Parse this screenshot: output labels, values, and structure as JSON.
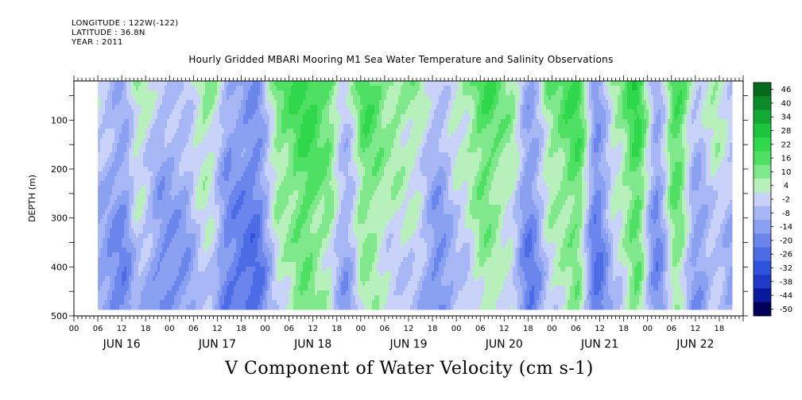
{
  "header": {
    "longitude": "LONGITUDE : 122W(-122)",
    "latitude": "LATITUDE : 36.8N",
    "year": "YEAR : 2011"
  },
  "chart_data": {
    "type": "heatmap",
    "title": "Hourly Gridded MBARI Mooring M1 Sea Water Temperature and Salinity Observations",
    "xlabel": "V Component of Water Velocity (cm s-1)",
    "ylabel": "DEPTH (m)",
    "y_reversed": true,
    "ylim": [
      500,
      20
    ],
    "y_ticks": [
      100,
      200,
      300,
      400,
      500
    ],
    "x_start": "JUN 16 00",
    "x_end": "JUN 22 23",
    "x_hour_ticks": [
      "00",
      "06",
      "12",
      "18",
      "00",
      "06",
      "12",
      "18",
      "00",
      "06",
      "12",
      "18",
      "00",
      "06",
      "12",
      "18",
      "00",
      "06",
      "12",
      "18",
      "00",
      "06",
      "12",
      "18",
      "00",
      "06",
      "12",
      "18"
    ],
    "x_day_labels": [
      "JUN 16",
      "JUN 17",
      "JUN 18",
      "JUN 19",
      "JUN 20",
      "JUN 21",
      "JUN 22"
    ],
    "colorbar": {
      "levels": [
        -50,
        -44,
        -38,
        -32,
        -26,
        -20,
        -14,
        -8,
        -2,
        4,
        10,
        16,
        22,
        28,
        34,
        40,
        46
      ],
      "labels": [
        "46",
        "40",
        "34",
        "28",
        "22",
        "16",
        "10",
        "4",
        "-2",
        "-8",
        "-14",
        "-20",
        "-26",
        "-32",
        "-38",
        "-44",
        "-50"
      ],
      "colors": {
        "-50": "#00005a",
        "-44": "#0a1a9e",
        "-38": "#1e38c8",
        "-32": "#2f52dc",
        "-26": "#4c6ce6",
        "-20": "#6a86ec",
        "-14": "#8aa0f0",
        "-8": "#a7b6f4",
        "-2": "#c9d2f8",
        "4": "#b8f0bc",
        "10": "#7ee88a",
        "16": "#4ee062",
        "22": "#2ed84a",
        "28": "#1cc63c",
        "34": "#12aa32",
        "40": "#0a8a28",
        "46": "#056a1c"
      }
    },
    "data_range": {
      "hours": [
        6,
        165
      ],
      "depth": [
        20,
        485
      ]
    },
    "columns": [
      {
        "hour": 6,
        "v": -6
      },
      {
        "hour": 12,
        "v": -12
      },
      {
        "hour": 16,
        "v": 2
      },
      {
        "hour": 22,
        "v": -10
      },
      {
        "hour": 27,
        "v": -8
      },
      {
        "hour": 33,
        "v": 5
      },
      {
        "hour": 39,
        "v": -14
      },
      {
        "hour": 45,
        "v": -18
      },
      {
        "hour": 52,
        "v": 10
      },
      {
        "hour": 58,
        "v": 18
      },
      {
        "hour": 63,
        "v": 12
      },
      {
        "hour": 68,
        "v": -6
      },
      {
        "hour": 73,
        "v": 14
      },
      {
        "hour": 79,
        "v": 6
      },
      {
        "hour": 85,
        "v": 4
      },
      {
        "hour": 91,
        "v": -10
      },
      {
        "hour": 97,
        "v": 2
      },
      {
        "hour": 103,
        "v": 14
      },
      {
        "hour": 109,
        "v": 6
      },
      {
        "hour": 114,
        "v": -14
      },
      {
        "hour": 120,
        "v": 8
      },
      {
        "hour": 126,
        "v": 16
      },
      {
        "hour": 131,
        "v": -16
      },
      {
        "hour": 136,
        "v": 4
      },
      {
        "hour": 141,
        "v": 18
      },
      {
        "hour": 146,
        "v": -12
      },
      {
        "hour": 151,
        "v": 16
      },
      {
        "hour": 156,
        "v": -8
      },
      {
        "hour": 161,
        "v": 2
      },
      {
        "hour": 165,
        "v": -4
      }
    ]
  }
}
